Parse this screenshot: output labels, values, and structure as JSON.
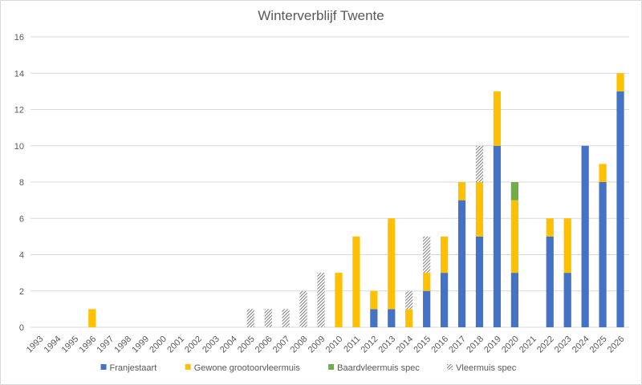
{
  "chart_data": {
    "type": "bar",
    "stacked": true,
    "title": "Winterverblijf Twente",
    "xlabel": "",
    "ylabel": "",
    "ylim": [
      0,
      16
    ],
    "yticks": [
      0,
      2,
      4,
      6,
      8,
      10,
      12,
      14,
      16
    ],
    "grid": "horizontal",
    "legend_position": "bottom",
    "categories": [
      "1993",
      "1994",
      "1995",
      "1996",
      "1997",
      "1998",
      "1999",
      "2000",
      "2001",
      "2002",
      "2003",
      "2004",
      "2005",
      "2006",
      "2007",
      "2008",
      "2009",
      "2010",
      "2011",
      "2012",
      "2013",
      "2014",
      "2015",
      "2016",
      "2017",
      "2018",
      "2019",
      "2020",
      "2021",
      "2022",
      "2023",
      "2024",
      "2025",
      "2026"
    ],
    "series": [
      {
        "name": "Franjestaart",
        "color": "#4472c4",
        "pattern": "solid",
        "values": [
          0,
          0,
          0,
          0,
          0,
          0,
          0,
          0,
          0,
          0,
          0,
          0,
          0,
          0,
          0,
          0,
          0,
          0,
          0,
          1,
          1,
          0,
          2,
          3,
          7,
          5,
          10,
          3,
          0,
          5,
          3,
          10,
          8,
          13
        ]
      },
      {
        "name": "Gewone grootoorvleermuis",
        "color": "#ffc000",
        "pattern": "solid",
        "values": [
          0,
          0,
          0,
          1,
          0,
          0,
          0,
          0,
          0,
          0,
          0,
          0,
          0,
          0,
          0,
          0,
          0,
          3,
          5,
          1,
          5,
          1,
          1,
          2,
          1,
          3,
          3,
          4,
          0,
          1,
          3,
          0,
          1,
          1
        ]
      },
      {
        "name": "Baardvleermuis spec",
        "color": "#70ad47",
        "pattern": "solid",
        "values": [
          0,
          0,
          0,
          0,
          0,
          0,
          0,
          0,
          0,
          0,
          0,
          0,
          0,
          0,
          0,
          0,
          0,
          0,
          0,
          0,
          0,
          0,
          0,
          0,
          0,
          0,
          0,
          1,
          0,
          0,
          0,
          0,
          0,
          0
        ]
      },
      {
        "name": "Vleermuis spec",
        "color": "#7f7f7f",
        "pattern": "hatch",
        "values": [
          0,
          0,
          0,
          0,
          0,
          0,
          0,
          0,
          0,
          0,
          0,
          0,
          1,
          1,
          1,
          2,
          3,
          0,
          0,
          0,
          0,
          1,
          2,
          0,
          0,
          2,
          0,
          0,
          0,
          0,
          0,
          0,
          0,
          0
        ]
      }
    ]
  }
}
